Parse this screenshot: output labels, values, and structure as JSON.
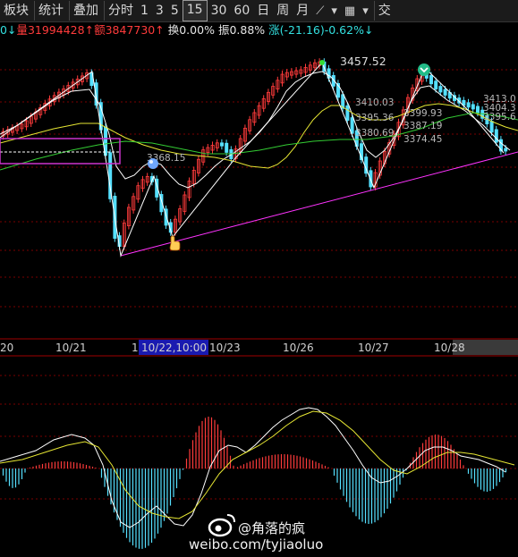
{
  "toolbar": {
    "items": [
      "板块",
      "统计",
      "叠加",
      "分时",
      "1",
      "3",
      "5",
      "15",
      "30",
      "60",
      "日",
      "周",
      "月",
      "交"
    ],
    "active": "15",
    "icons": [
      "draw-line-icon",
      "chevron-down-icon",
      "grid-icon",
      "chevron-down-icon"
    ]
  },
  "infobar": {
    "prefix": "0↓",
    "volume_label": "量",
    "volume_value": "31994428↑",
    "amount_label": "额",
    "amount_value": "3847730↑",
    "turnover_label": "换",
    "turnover_value": "0.00%",
    "amplitude_label": "振",
    "amplitude_value": "0.88%",
    "change_label": "涨",
    "change_value": "(-21.16)-0.62%↓"
  },
  "chart": {
    "price_labels": [
      "3457.52",
      "3410.03",
      "3395.36",
      "3380.69",
      "3399.93",
      "3387.19",
      "3374.45",
      "3413.0",
      "3404.3",
      "3395.6",
      "3368.15"
    ],
    "dates": [
      "20",
      "10/21",
      "1",
      "10/22,10:00",
      "10/23",
      "10/26",
      "10/27",
      "10/28"
    ],
    "colors": {
      "up": "#ff3b3b",
      "down": "#55e0ff",
      "ma_white": "#ffffff",
      "ma_yellow": "#e6e633",
      "ma_green": "#33cc33",
      "trend": "#ff33ff",
      "grid": "#7a0000"
    }
  },
  "watermark": {
    "handle": "@角落的疯",
    "url": "weibo.com/tyjiaoluo"
  }
}
